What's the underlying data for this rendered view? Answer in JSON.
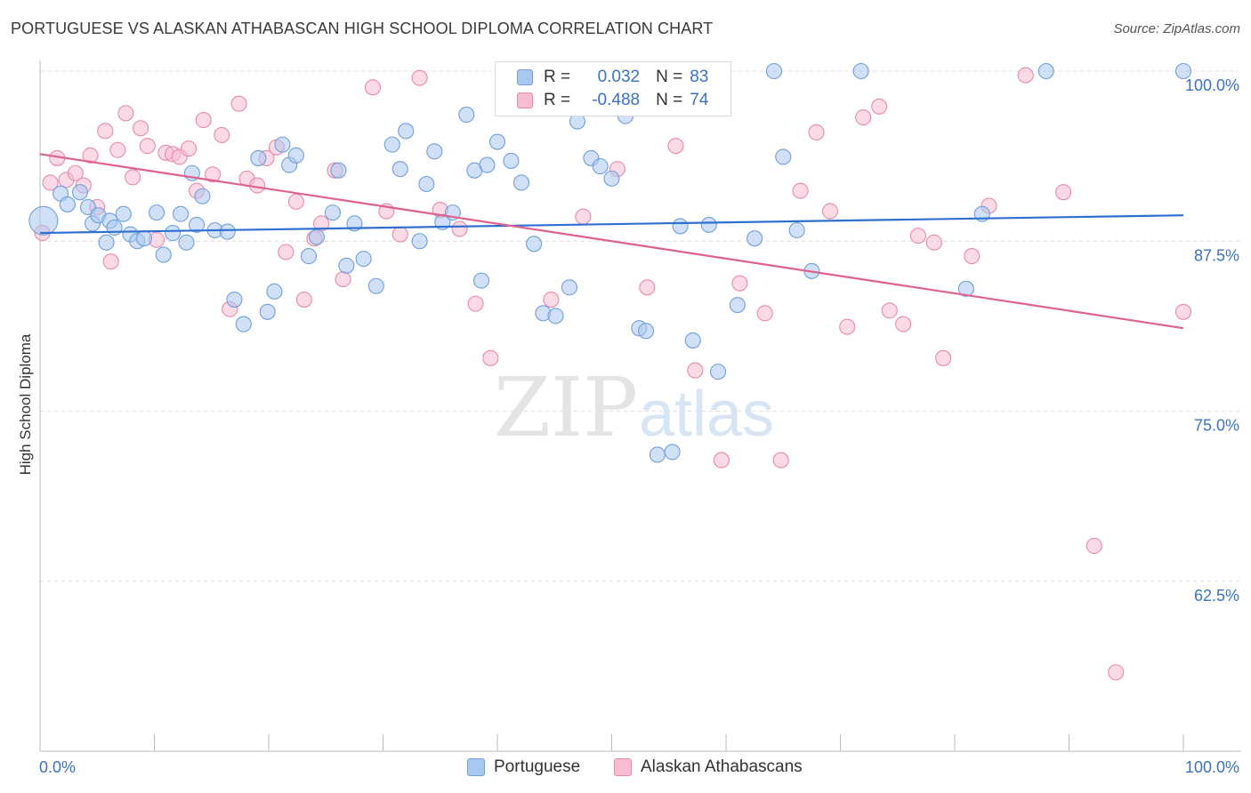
{
  "title": "PORTUGUESE VS ALASKAN ATHABASCAN HIGH SCHOOL DIPLOMA CORRELATION CHART",
  "source": "Source: ZipAtlas.com",
  "watermark": {
    "zip": "ZIP",
    "atlas": "atlas"
  },
  "legend": {
    "r_label": "R =",
    "n_label": "N =",
    "rows": [
      {
        "r": "0.032",
        "n": "83",
        "color": "#a9c8f0",
        "border": "#6f9fdc"
      },
      {
        "r": "-0.488",
        "n": "74",
        "color": "#f7bcd0",
        "border": "#e88aaa"
      }
    ]
  },
  "bottom_legend": [
    "Portuguese",
    "Alaskan Athabascans"
  ],
  "chart_data": {
    "type": "scatter",
    "ylabel": "High School Diploma",
    "xlabel": "",
    "xlim": [
      0,
      100
    ],
    "ylim": [
      50,
      100
    ],
    "x_ticks": [
      "0.0%",
      "100.0%"
    ],
    "y_ticks": [
      {
        "value": 100,
        "label": "100.0%"
      },
      {
        "value": 87.5,
        "label": "87.5%"
      },
      {
        "value": 75,
        "label": "75.0%"
      },
      {
        "value": 62.5,
        "label": "62.5%"
      }
    ],
    "grid": true,
    "series": [
      {
        "name": "Portuguese",
        "color": "#6f9fdc",
        "fill": "#a9c8f0",
        "line_color": "#2f6fcf",
        "trend": [
          [
            0,
            88.1
          ],
          [
            100,
            89.4
          ]
        ],
        "points": [
          [
            0.3,
            89
          ],
          [
            1.8,
            91
          ],
          [
            2.4,
            90.2
          ],
          [
            3.5,
            91.1
          ],
          [
            4.2,
            90
          ],
          [
            4.6,
            88.8
          ],
          [
            5.1,
            89.4
          ],
          [
            5.8,
            87.4
          ],
          [
            6.1,
            89
          ],
          [
            6.5,
            88.5
          ],
          [
            7.3,
            89.5
          ],
          [
            7.9,
            88
          ],
          [
            8.5,
            87.5
          ],
          [
            9.1,
            87.7
          ],
          [
            10.2,
            89.6
          ],
          [
            10.8,
            86.5
          ],
          [
            11.6,
            88.1
          ],
          [
            12.3,
            89.5
          ],
          [
            12.8,
            87.4
          ],
          [
            13.3,
            92.5
          ],
          [
            13.7,
            88.7
          ],
          [
            14.2,
            90.8
          ],
          [
            15.3,
            88.3
          ],
          [
            16.4,
            88.2
          ],
          [
            17.0,
            83.2
          ],
          [
            17.8,
            81.4
          ],
          [
            19.1,
            93.6
          ],
          [
            19.9,
            82.3
          ],
          [
            20.5,
            83.8
          ],
          [
            21.2,
            94.6
          ],
          [
            21.8,
            93.1
          ],
          [
            22.4,
            93.8
          ],
          [
            23.5,
            86.4
          ],
          [
            24.2,
            87.8
          ],
          [
            25.6,
            89.6
          ],
          [
            26.1,
            92.7
          ],
          [
            26.8,
            85.7
          ],
          [
            27.5,
            88.8
          ],
          [
            28.3,
            86.2
          ],
          [
            29.4,
            84.2
          ],
          [
            30.8,
            94.6
          ],
          [
            31.5,
            92.8
          ],
          [
            32.0,
            95.6
          ],
          [
            33.2,
            87.5
          ],
          [
            33.8,
            91.7
          ],
          [
            34.5,
            94.1
          ],
          [
            35.2,
            88.9
          ],
          [
            36.1,
            89.6
          ],
          [
            37.3,
            96.8
          ],
          [
            38.0,
            92.7
          ],
          [
            38.6,
            84.6
          ],
          [
            39.1,
            93.1
          ],
          [
            40.0,
            94.8
          ],
          [
            41.2,
            93.4
          ],
          [
            42.1,
            91.8
          ],
          [
            43.2,
            87.3
          ],
          [
            44.0,
            82.2
          ],
          [
            45.1,
            82.0
          ],
          [
            46.3,
            84.1
          ],
          [
            47.0,
            96.3
          ],
          [
            48.2,
            93.6
          ],
          [
            49.0,
            93.0
          ],
          [
            50.0,
            92.1
          ],
          [
            51.2,
            96.7
          ],
          [
            52.4,
            81.1
          ],
          [
            53.0,
            80.9
          ],
          [
            54.0,
            71.8
          ],
          [
            55.3,
            72.0
          ],
          [
            56.0,
            88.6
          ],
          [
            57.1,
            80.2
          ],
          [
            58.5,
            88.7
          ],
          [
            59.3,
            77.9
          ],
          [
            61.0,
            82.8
          ],
          [
            62.5,
            87.7
          ],
          [
            64.2,
            100
          ],
          [
            65.0,
            93.7
          ],
          [
            66.2,
            88.3
          ],
          [
            67.5,
            85.3
          ],
          [
            71.8,
            100
          ],
          [
            81.0,
            84.0
          ],
          [
            82.4,
            89.5
          ],
          [
            88.0,
            100
          ],
          [
            100.0,
            100
          ]
        ]
      },
      {
        "name": "Alaskan Athabascans",
        "color": "#e88aaa",
        "fill": "#f7bcd0",
        "line_color": "#e0608e",
        "trend": [
          [
            0,
            93.9
          ],
          [
            100,
            81.1
          ]
        ],
        "points": [
          [
            0.2,
            88.1
          ],
          [
            0.9,
            91.8
          ],
          [
            1.5,
            93.6
          ],
          [
            2.3,
            92.0
          ],
          [
            3.1,
            92.5
          ],
          [
            3.8,
            91.6
          ],
          [
            4.4,
            93.8
          ],
          [
            5.0,
            90.0
          ],
          [
            5.7,
            95.6
          ],
          [
            6.2,
            86.0
          ],
          [
            6.8,
            94.2
          ],
          [
            7.5,
            96.9
          ],
          [
            8.1,
            92.2
          ],
          [
            8.8,
            95.8
          ],
          [
            9.4,
            94.5
          ],
          [
            10.2,
            87.6
          ],
          [
            11.0,
            94.0
          ],
          [
            11.6,
            93.9
          ],
          [
            12.2,
            93.7
          ],
          [
            13.0,
            94.3
          ],
          [
            13.7,
            91.2
          ],
          [
            14.3,
            96.4
          ],
          [
            15.1,
            92.4
          ],
          [
            15.9,
            95.3
          ],
          [
            16.6,
            82.5
          ],
          [
            17.4,
            97.6
          ],
          [
            18.1,
            92.1
          ],
          [
            19.0,
            91.6
          ],
          [
            19.8,
            93.6
          ],
          [
            20.7,
            94.4
          ],
          [
            21.5,
            86.7
          ],
          [
            22.4,
            90.4
          ],
          [
            23.1,
            83.2
          ],
          [
            24.0,
            87.7
          ],
          [
            24.6,
            88.8
          ],
          [
            25.8,
            92.7
          ],
          [
            26.5,
            84.7
          ],
          [
            29.1,
            98.8
          ],
          [
            30.3,
            89.7
          ],
          [
            31.5,
            88.0
          ],
          [
            33.2,
            99.5
          ],
          [
            35.0,
            89.8
          ],
          [
            36.7,
            88.4
          ],
          [
            38.1,
            82.9
          ],
          [
            39.4,
            78.9
          ],
          [
            42.0,
            99.0
          ],
          [
            44.7,
            83.2
          ],
          [
            47.5,
            89.3
          ],
          [
            50.5,
            92.8
          ],
          [
            53.1,
            84.1
          ],
          [
            55.6,
            94.5
          ],
          [
            57.3,
            78.0
          ],
          [
            59.6,
            71.4
          ],
          [
            61.2,
            84.4
          ],
          [
            63.4,
            82.2
          ],
          [
            64.8,
            71.4
          ],
          [
            66.5,
            91.2
          ],
          [
            67.9,
            95.5
          ],
          [
            69.1,
            89.7
          ],
          [
            70.6,
            81.2
          ],
          [
            72.0,
            96.6
          ],
          [
            73.4,
            97.4
          ],
          [
            74.3,
            82.4
          ],
          [
            75.5,
            81.4
          ],
          [
            76.8,
            87.9
          ],
          [
            78.2,
            87.4
          ],
          [
            79.0,
            78.9
          ],
          [
            81.5,
            86.4
          ],
          [
            83.0,
            90.1
          ],
          [
            86.2,
            99.7
          ],
          [
            89.5,
            91.1
          ],
          [
            92.2,
            65.1
          ],
          [
            94.1,
            55.8
          ],
          [
            100.0,
            82.3
          ]
        ]
      }
    ]
  }
}
